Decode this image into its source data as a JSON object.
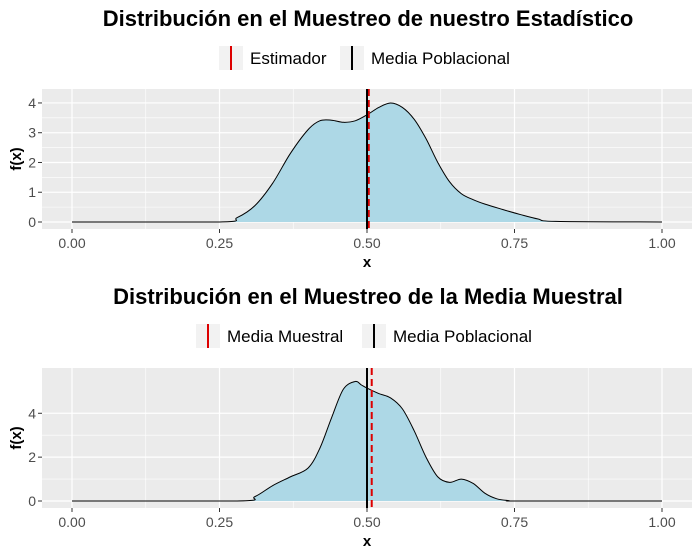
{
  "chart_data": [
    {
      "type": "area",
      "title": "Distribución en el Muestreo de nuestro Estadístico",
      "xlabel": "x",
      "ylabel": "f(x)",
      "xlim": [
        0,
        1
      ],
      "ylim": [
        0,
        4.2
      ],
      "x_ticks": [
        "0.00",
        "0.25",
        "0.50",
        "0.75",
        "1.00"
      ],
      "y_ticks": [
        "0",
        "1",
        "2",
        "3",
        "4"
      ],
      "fill_color": "#add8e6",
      "line_color": "#000000",
      "density": {
        "x": [
          0.0,
          0.25,
          0.28,
          0.31,
          0.34,
          0.37,
          0.4,
          0.42,
          0.44,
          0.46,
          0.48,
          0.5,
          0.52,
          0.54,
          0.56,
          0.58,
          0.6,
          0.62,
          0.64,
          0.66,
          0.68,
          0.7,
          0.73,
          0.76,
          0.79,
          0.82,
          1.0
        ],
        "y": [
          0.0,
          0.0,
          0.15,
          0.55,
          1.3,
          2.3,
          3.1,
          3.4,
          3.42,
          3.35,
          3.4,
          3.6,
          3.85,
          4.0,
          3.85,
          3.45,
          2.8,
          2.0,
          1.35,
          0.95,
          0.75,
          0.6,
          0.42,
          0.25,
          0.1,
          0.02,
          0.0
        ]
      },
      "vlines": [
        {
          "name": "Estimador",
          "x": 0.503,
          "color": "#dd0000",
          "style": "dashed"
        },
        {
          "name": "Media Poblacional",
          "x": 0.5,
          "color": "#000000",
          "style": "solid"
        }
      ],
      "legend": [
        "Estimador",
        "Media Poblacional"
      ]
    },
    {
      "type": "area",
      "title": "Distribución en el Muestreo de la Media Muestral",
      "xlabel": "x",
      "ylabel": "f(x)",
      "xlim": [
        0,
        1
      ],
      "ylim": [
        0,
        5.7
      ],
      "x_ticks": [
        "0.00",
        "0.25",
        "0.50",
        "0.75",
        "1.00"
      ],
      "y_ticks": [
        "0",
        "2",
        "4"
      ],
      "fill_color": "#add8e6",
      "line_color": "#000000",
      "density": {
        "x": [
          0.0,
          0.28,
          0.31,
          0.34,
          0.37,
          0.4,
          0.42,
          0.44,
          0.46,
          0.48,
          0.49,
          0.5,
          0.52,
          0.54,
          0.56,
          0.58,
          0.6,
          0.62,
          0.64,
          0.66,
          0.68,
          0.7,
          0.72,
          0.74,
          0.76,
          1.0
        ],
        "y": [
          0.0,
          0.0,
          0.2,
          0.7,
          1.1,
          1.5,
          2.4,
          3.8,
          5.1,
          5.45,
          5.3,
          5.15,
          4.9,
          4.7,
          4.2,
          3.2,
          2.0,
          1.1,
          0.85,
          1.0,
          0.8,
          0.35,
          0.1,
          0.02,
          0.0,
          0.0
        ]
      },
      "vlines": [
        {
          "name": "Media Muestral",
          "x": 0.508,
          "color": "#dd0000",
          "style": "dashed"
        },
        {
          "name": "Media Poblacional",
          "x": 0.5,
          "color": "#000000",
          "style": "solid"
        }
      ],
      "legend": [
        "Media Muestral",
        "Media Poblacional"
      ]
    }
  ]
}
